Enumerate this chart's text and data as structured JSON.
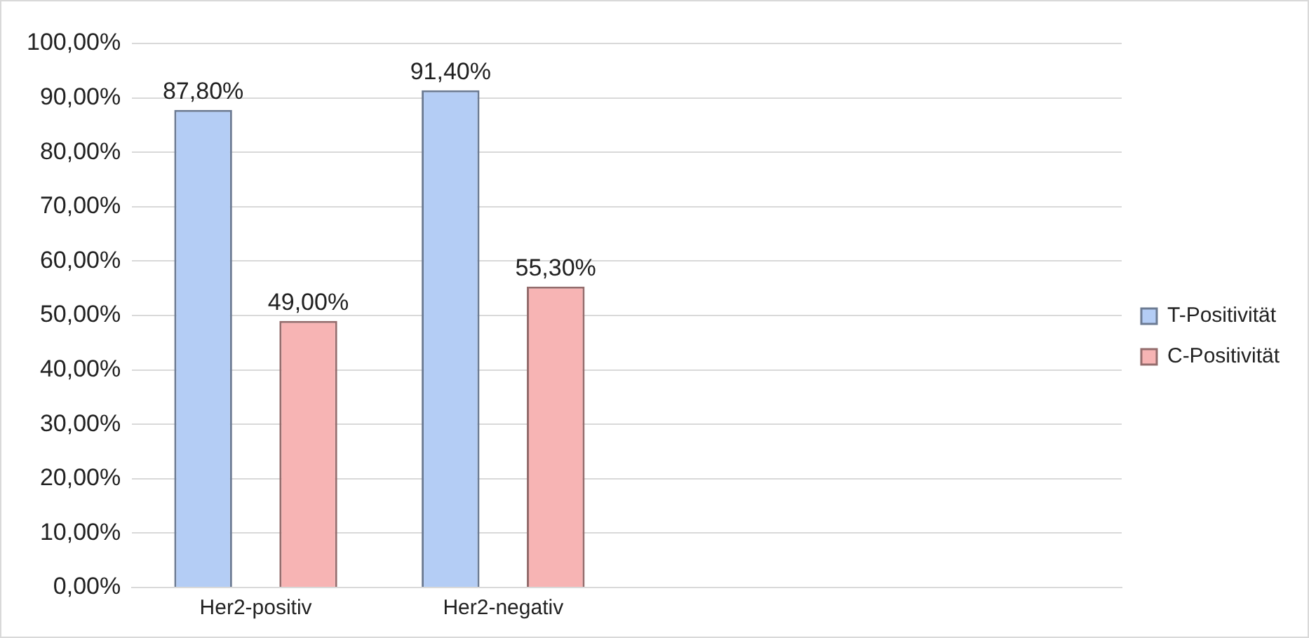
{
  "chart_data": {
    "type": "bar",
    "categories": [
      "Her2-positiv",
      "Her2-negativ",
      null,
      null
    ],
    "series": [
      {
        "name": "T-Positivität",
        "color": "#b4cdf5",
        "values": [
          87.8,
          91.4,
          null,
          null
        ],
        "value_labels": [
          "87,80%",
          "91,40%",
          null,
          null
        ]
      },
      {
        "name": "C-Positivität",
        "color": "#f7b4b4",
        "values": [
          49.0,
          55.3,
          null,
          null
        ],
        "value_labels": [
          "49,00%",
          "55,30%",
          null,
          null
        ]
      }
    ],
    "ylim": [
      0,
      100
    ],
    "yticks": [
      {
        "value": 0,
        "label": "0,00%"
      },
      {
        "value": 10,
        "label": "10,00%"
      },
      {
        "value": 20,
        "label": "20,00%"
      },
      {
        "value": 30,
        "label": "30,00%"
      },
      {
        "value": 40,
        "label": "40,00%"
      },
      {
        "value": 50,
        "label": "50,00%"
      },
      {
        "value": 60,
        "label": "60,00%"
      },
      {
        "value": 70,
        "label": "70,00%"
      },
      {
        "value": 80,
        "label": "80,00%"
      },
      {
        "value": 90,
        "label": "90,00%"
      },
      {
        "value": 100,
        "label": "100,00%"
      }
    ],
    "grid": "y",
    "legend": "right"
  }
}
